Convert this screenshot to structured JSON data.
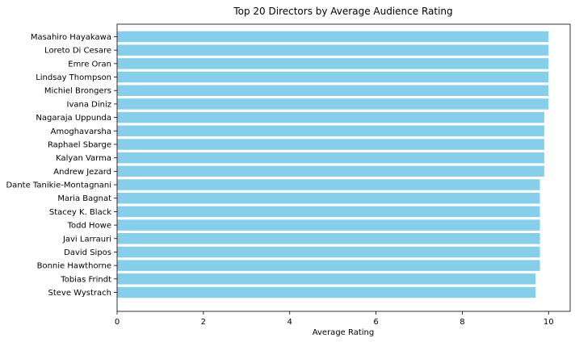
{
  "chart_data": {
    "type": "bar",
    "orientation": "horizontal",
    "title": "Top 20 Directors by Average Audience Rating",
    "xlabel": "Average Rating",
    "ylabel": "",
    "xlim": [
      0,
      10.5
    ],
    "xticks": [
      0,
      2,
      4,
      6,
      8,
      10
    ],
    "grid": false,
    "legend": "none",
    "bar_color": "#87ceeb",
    "categories": [
      "Masahiro Hayakawa",
      "Loreto Di Cesare",
      "Emre Oran",
      "Lindsay Thompson",
      "Michiel Brongers",
      "Ivana Diniz",
      "Nagaraja Uppunda",
      "Amoghavarsha",
      "Raphael Sbarge",
      "Kalyan Varma",
      "Andrew Jezard",
      "Dante Tanikie-Montagnani",
      "Maria Bagnat",
      "Stacey K. Black",
      "Todd Howe",
      "Javi Larrauri",
      "David Sipos",
      "Bonnie Hawthorne",
      "Tobias Frindt",
      "Steve Wystrach"
    ],
    "values": [
      10.0,
      10.0,
      10.0,
      10.0,
      10.0,
      10.0,
      9.9,
      9.9,
      9.9,
      9.9,
      9.9,
      9.8,
      9.8,
      9.8,
      9.8,
      9.8,
      9.8,
      9.8,
      9.7,
      9.7
    ]
  }
}
